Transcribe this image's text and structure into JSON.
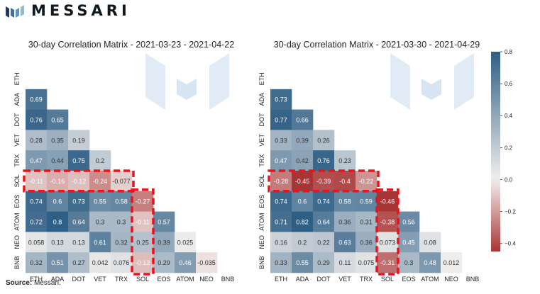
{
  "brand": {
    "name": "MESSARI",
    "logo_icon": "messari-logo-icon"
  },
  "footer": {
    "source_label": "Source:",
    "source_value": "Messari."
  },
  "colorbar": {
    "min": -0.45,
    "max": 0.8,
    "ticks": [
      "0.8",
      "0.6",
      "0.4",
      "0.2",
      "0.0",
      "−0.2",
      "−0.4"
    ],
    "tick_values": [
      0.8,
      0.6,
      0.4,
      0.2,
      0.0,
      -0.2,
      -0.4
    ],
    "color_negative": "#a83535",
    "color_zero": "#f2efee",
    "color_positive": "#2f5f85"
  },
  "chart_data": [
    {
      "type": "heatmap",
      "title": "30-day Correlation Matrix - 2021-03-23 - 2021-04-22",
      "labels": [
        "ETH",
        "ADA",
        "DOT",
        "VET",
        "TRX",
        "SOL",
        "EOS",
        "ATOM",
        "NEO",
        "BNB"
      ],
      "rows": [
        {
          "label": "ETH",
          "cells": []
        },
        {
          "label": "ADA",
          "cells": [
            {
              "v": 0.69,
              "t": "0.69"
            }
          ]
        },
        {
          "label": "DOT",
          "cells": [
            {
              "v": 0.76,
              "t": "0.76"
            },
            {
              "v": 0.65,
              "t": "0.65"
            }
          ]
        },
        {
          "label": "VET",
          "cells": [
            {
              "v": 0.28,
              "t": "0.28"
            },
            {
              "v": 0.35,
              "t": "0.35"
            },
            {
              "v": 0.19,
              "t": "0.19"
            }
          ]
        },
        {
          "label": "TRX",
          "cells": [
            {
              "v": 0.47,
              "t": "0.47"
            },
            {
              "v": 0.44,
              "t": "0.44"
            },
            {
              "v": 0.75,
              "t": "0.75"
            },
            {
              "v": 0.2,
              "t": "0.2"
            }
          ]
        },
        {
          "label": "SOL",
          "cells": [
            {
              "v": -0.11,
              "t": "-0.11"
            },
            {
              "v": -0.16,
              "t": "-0.16"
            },
            {
              "v": -0.12,
              "t": "-0.12"
            },
            {
              "v": -0.24,
              "t": "-0.24"
            },
            {
              "v": -0.077,
              "t": "-0.077"
            }
          ]
        },
        {
          "label": "EOS",
          "cells": [
            {
              "v": 0.74,
              "t": "0.74"
            },
            {
              "v": 0.6,
              "t": "0.6"
            },
            {
              "v": 0.73,
              "t": "0.73"
            },
            {
              "v": 0.55,
              "t": "0.55"
            },
            {
              "v": 0.58,
              "t": "0.58"
            },
            {
              "v": -0.27,
              "t": "-0.27"
            }
          ]
        },
        {
          "label": "ATOM",
          "cells": [
            {
              "v": 0.72,
              "t": "0.72"
            },
            {
              "v": 0.8,
              "t": "0.8"
            },
            {
              "v": 0.64,
              "t": "0.64"
            },
            {
              "v": 0.3,
              "t": "0.3"
            },
            {
              "v": 0.3,
              "t": "0.3"
            },
            {
              "v": -0.11,
              "t": "-0.11"
            },
            {
              "v": 0.57,
              "t": "0.57"
            }
          ]
        },
        {
          "label": "NEO",
          "cells": [
            {
              "v": 0.058,
              "t": "0.058"
            },
            {
              "v": 0.13,
              "t": "0.13"
            },
            {
              "v": 0.13,
              "t": "0.13"
            },
            {
              "v": 0.61,
              "t": "0.61"
            },
            {
              "v": 0.32,
              "t": "0.32"
            },
            {
              "v": 0.25,
              "t": "0.25"
            },
            {
              "v": 0.39,
              "t": "0.39"
            },
            {
              "v": 0.025,
              "t": "0.025"
            }
          ]
        },
        {
          "label": "BNB",
          "cells": [
            {
              "v": 0.32,
              "t": "0.32"
            },
            {
              "v": 0.51,
              "t": "0.51"
            },
            {
              "v": 0.27,
              "t": "0.27"
            },
            {
              "v": 0.042,
              "t": "0.042"
            },
            {
              "v": 0.076,
              "t": "0.076"
            },
            {
              "v": -0.12,
              "t": "-0.12"
            },
            {
              "v": 0.29,
              "t": "0.29"
            },
            {
              "v": 0.46,
              "t": "0.46"
            },
            {
              "v": -0.035,
              "t": "-0.035"
            }
          ]
        }
      ],
      "highlight": {
        "label": "SOL",
        "color": "#e8141b",
        "style": "dashed"
      }
    },
    {
      "type": "heatmap",
      "title": "30-day Correlation Matrix - 2021-03-30 - 2021-04-29",
      "labels": [
        "ETH",
        "ADA",
        "DOT",
        "VET",
        "TRX",
        "SOL",
        "EOS",
        "ATOM",
        "NEO",
        "BNB"
      ],
      "rows": [
        {
          "label": "ETH",
          "cells": []
        },
        {
          "label": "ADA",
          "cells": [
            {
              "v": 0.73,
              "t": "0.73"
            }
          ]
        },
        {
          "label": "DOT",
          "cells": [
            {
              "v": 0.77,
              "t": "0.77"
            },
            {
              "v": 0.66,
              "t": "0.66"
            }
          ]
        },
        {
          "label": "VET",
          "cells": [
            {
              "v": 0.33,
              "t": "0.33"
            },
            {
              "v": 0.39,
              "t": "0.39"
            },
            {
              "v": 0.26,
              "t": "0.26"
            }
          ]
        },
        {
          "label": "TRX",
          "cells": [
            {
              "v": 0.47,
              "t": "0.47"
            },
            {
              "v": 0.42,
              "t": "0.42"
            },
            {
              "v": 0.76,
              "t": "0.76"
            },
            {
              "v": 0.23,
              "t": "0.23"
            }
          ]
        },
        {
          "label": "SOL",
          "cells": [
            {
              "v": -0.28,
              "t": "-0.28"
            },
            {
              "v": -0.45,
              "t": "-0.45"
            },
            {
              "v": -0.39,
              "t": "-0.39"
            },
            {
              "v": -0.4,
              "t": "-0.4"
            },
            {
              "v": -0.22,
              "t": "-0.22"
            }
          ]
        },
        {
          "label": "EOS",
          "cells": [
            {
              "v": 0.74,
              "t": "0.74"
            },
            {
              "v": 0.6,
              "t": "0.6"
            },
            {
              "v": 0.74,
              "t": "0.74"
            },
            {
              "v": 0.58,
              "t": "0.58"
            },
            {
              "v": 0.59,
              "t": "0.59"
            },
            {
              "v": -0.46,
              "t": "-0.46"
            }
          ]
        },
        {
          "label": "ATOM",
          "cells": [
            {
              "v": 0.71,
              "t": "0.71"
            },
            {
              "v": 0.82,
              "t": "0.82"
            },
            {
              "v": 0.64,
              "t": "0.64"
            },
            {
              "v": 0.36,
              "t": "0.36"
            },
            {
              "v": 0.31,
              "t": "0.31"
            },
            {
              "v": -0.38,
              "t": "-0.38"
            },
            {
              "v": 0.56,
              "t": "0.56"
            }
          ]
        },
        {
          "label": "NEO",
          "cells": [
            {
              "v": 0.16,
              "t": "0.16"
            },
            {
              "v": 0.2,
              "t": "0.2"
            },
            {
              "v": 0.22,
              "t": "0.22"
            },
            {
              "v": 0.63,
              "t": "0.63"
            },
            {
              "v": 0.36,
              "t": "0.36"
            },
            {
              "v": 0.073,
              "t": "0.073"
            },
            {
              "v": 0.45,
              "t": "0.45"
            },
            {
              "v": 0.08,
              "t": "0.08"
            }
          ]
        },
        {
          "label": "BNB",
          "cells": [
            {
              "v": 0.33,
              "t": "0.33"
            },
            {
              "v": 0.55,
              "t": "0.55"
            },
            {
              "v": 0.29,
              "t": "0.29"
            },
            {
              "v": 0.11,
              "t": "0.11"
            },
            {
              "v": 0.075,
              "t": "0.075"
            },
            {
              "v": -0.31,
              "t": "-0.31"
            },
            {
              "v": 0.3,
              "t": "0.3"
            },
            {
              "v": 0.48,
              "t": "0.48"
            },
            {
              "v": 0.012,
              "t": "0.012"
            }
          ]
        }
      ],
      "highlight": {
        "label": "SOL",
        "color": "#e8141b",
        "style": "dashed"
      }
    }
  ]
}
